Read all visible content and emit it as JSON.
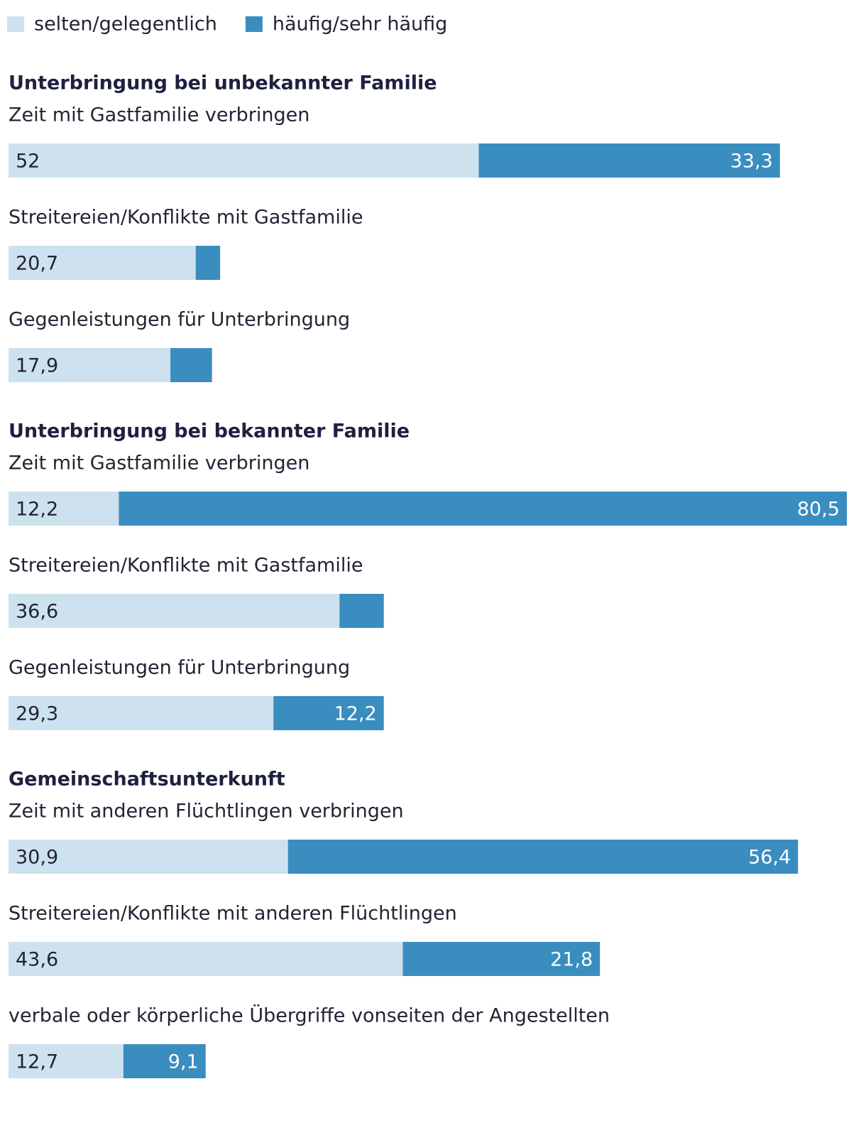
{
  "chart_data": [
    {
      "type": "bar",
      "title": "Unterbringung bei unbekannter Familie",
      "categories": [
        "Zeit mit Gastfamilie verbringen",
        "Streitereien/Konflikte mit Gastfamilie",
        "Gegenleistungen für Unterbringung"
      ],
      "series": [
        {
          "name": "selten/gelegentlich",
          "color": "#cde1ee",
          "values": [
            52,
            20.7,
            17.9
          ],
          "value_labels": [
            "52",
            "20,7",
            "17,9"
          ]
        },
        {
          "name": "häufig/sehr häufig",
          "color": "#3a8dbf",
          "values": [
            33.3,
            2.7,
            4.6
          ],
          "value_labels": [
            "33,3",
            null,
            null
          ]
        }
      ]
    },
    {
      "type": "bar",
      "title": "Unterbringung bei bekannter Familie",
      "categories": [
        "Zeit mit Gastfamilie verbringen",
        "Streitereien/Konflikte mit Gastfamilie",
        "Gegenleistungen für Unterbringung"
      ],
      "series": [
        {
          "name": "selten/gelegentlich",
          "color": "#cde1ee",
          "values": [
            12.2,
            36.6,
            29.3
          ],
          "value_labels": [
            "12,2",
            "36,6",
            "29,3"
          ]
        },
        {
          "name": "häufig/sehr häufig",
          "color": "#3a8dbf",
          "values": [
            80.5,
            4.9,
            12.2
          ],
          "value_labels": [
            "80,5",
            null,
            "12,2"
          ]
        }
      ]
    },
    {
      "type": "bar",
      "title": "Gemeinschaftsunterkunft",
      "categories": [
        "Zeit mit anderen Flüchtlingen verbringen",
        "Streitereien/Konflikte mit anderen Flüchtlingen",
        "verbale oder körperliche Übergriffe vonseiten der Angestellten"
      ],
      "series": [
        {
          "name": "selten/gelegentlich",
          "color": "#cde1ee",
          "values": [
            30.9,
            43.6,
            12.7
          ],
          "value_labels": [
            "30,9",
            "43,6",
            "12,7"
          ]
        },
        {
          "name": "häufig/sehr häufig",
          "color": "#3a8dbf",
          "values": [
            56.4,
            21.8,
            9.1
          ],
          "value_labels": [
            "56,4",
            "21,8",
            "9,1"
          ]
        }
      ]
    }
  ]
}
